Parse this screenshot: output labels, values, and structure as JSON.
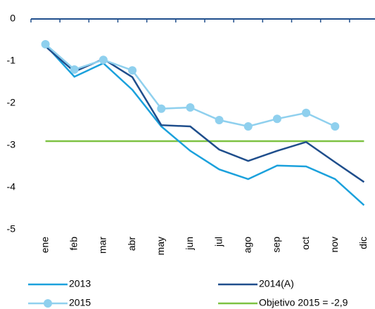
{
  "chart_data": {
    "type": "line",
    "categories": [
      "ene",
      "feb",
      "mar",
      "abr",
      "may",
      "jun",
      "jul",
      "ago",
      "sep",
      "oct",
      "nov",
      "dic"
    ],
    "series": [
      {
        "name": "2013",
        "color": "#1ba1dc",
        "values": [
          -0.62,
          -1.37,
          -1.05,
          -1.68,
          -2.55,
          -3.13,
          -3.57,
          -3.8,
          -3.48,
          -3.5,
          -3.8,
          -4.42
        ]
      },
      {
        "name": "2014(A)",
        "color": "#1f4e8c",
        "values": [
          -0.65,
          -1.25,
          -0.95,
          -1.38,
          -2.52,
          -2.55,
          -3.1,
          -3.37,
          -3.13,
          -2.92,
          -3.4,
          -3.87
        ]
      },
      {
        "name": "2015",
        "color": "#8fd0ee",
        "marker": true,
        "values": [
          -0.6,
          -1.2,
          -0.97,
          -1.22,
          -2.13,
          -2.1,
          -2.4,
          -2.55,
          -2.37,
          -2.23,
          -2.55,
          null
        ]
      },
      {
        "name": "Objetivo 2015 = -2,9",
        "color": "#7dc242",
        "values": [
          -2.9,
          -2.9,
          -2.9,
          -2.9,
          -2.9,
          -2.9,
          -2.9,
          -2.9,
          -2.9,
          -2.9,
          -2.9,
          -2.9
        ]
      }
    ],
    "ylim": [
      -5,
      0
    ],
    "yticks": [
      0,
      -1,
      -2,
      -3,
      -4,
      -5
    ],
    "grid": false,
    "legend": "bottom"
  }
}
